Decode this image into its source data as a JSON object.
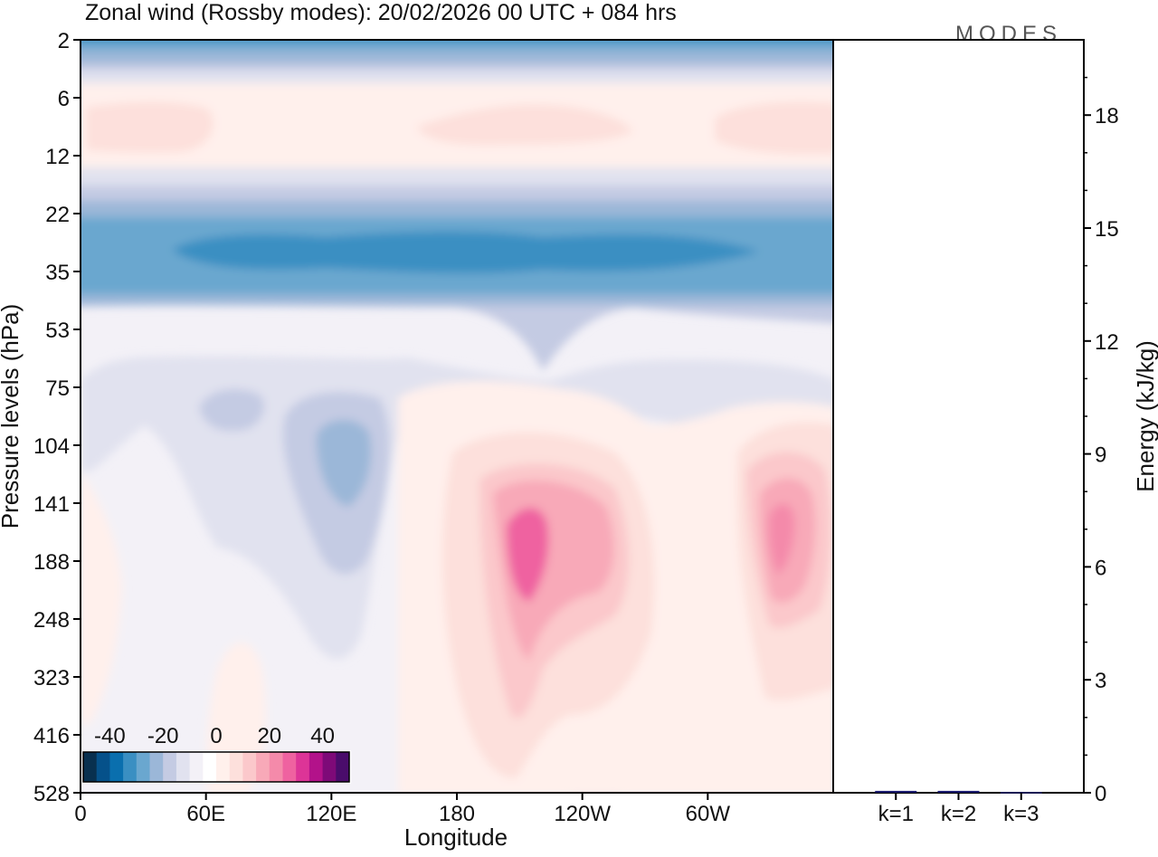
{
  "chart_data": [
    {
      "type": "heatmap",
      "title": "Zonal wind (Rossby modes):  20/02/2026  00 UTC  + 084 hrs",
      "watermark": "MODES",
      "xlabel": "Longitude",
      "ylabel": "Pressure levels (hPa)",
      "x_ticks": [
        "0",
        "60E",
        "120E",
        "180",
        "120W",
        "60W"
      ],
      "x_tick_degrees": [
        0,
        60,
        120,
        180,
        240,
        300
      ],
      "xlim": [
        0,
        360
      ],
      "y_ticks": [
        "2",
        "6",
        "12",
        "22",
        "35",
        "53",
        "75",
        "104",
        "141",
        "188",
        "248",
        "323",
        "416",
        "528"
      ],
      "y_scale": "pressure levels, listed top to bottom",
      "colorbar": {
        "tick_labels": [
          "-40",
          "-20",
          "0",
          "20",
          "40"
        ],
        "tick_values": [
          -40,
          -20,
          0,
          20,
          40
        ],
        "range": [
          -50,
          50
        ],
        "step": 5,
        "colors": [
          "#08304f",
          "#05518a",
          "#0a6fae",
          "#3a8fc2",
          "#6aa7cf",
          "#9bb7d8",
          "#c4cbe3",
          "#e1e2ef",
          "#f3f1f7",
          "#ffffff",
          "#fff0ec",
          "#fde0dc",
          "#fbc8cb",
          "#f8a9b8",
          "#f48aaa",
          "#ef62a0",
          "#dd3497",
          "#b3128a",
          "#7e0a78",
          "#4a0c6b"
        ]
      },
      "features": [
        {
          "name": "upper stratosphere easterlies",
          "level": "2",
          "value": -30
        },
        {
          "name": "stratospheric easterly jet",
          "level": "22-35",
          "value": -30
        },
        {
          "name": "westerly maximum near 160W",
          "level": "141-188",
          "value": 25
        },
        {
          "name": "westerly maximum near 30W",
          "level": "141-188",
          "value": 20
        },
        {
          "name": "easterly core near 125E",
          "level": "104-141",
          "value": -15
        }
      ]
    },
    {
      "type": "bar",
      "ylabel": "Energy (kJ/kg)",
      "categories": [
        "k=1",
        "k=2",
        "k=3"
      ],
      "values": [
        0.05,
        0.05,
        0.02
      ],
      "ylim": [
        0,
        20
      ],
      "y_ticks": [
        0,
        3,
        6,
        9,
        12,
        15,
        18
      ],
      "bar_color": "#1a1a6e"
    }
  ]
}
